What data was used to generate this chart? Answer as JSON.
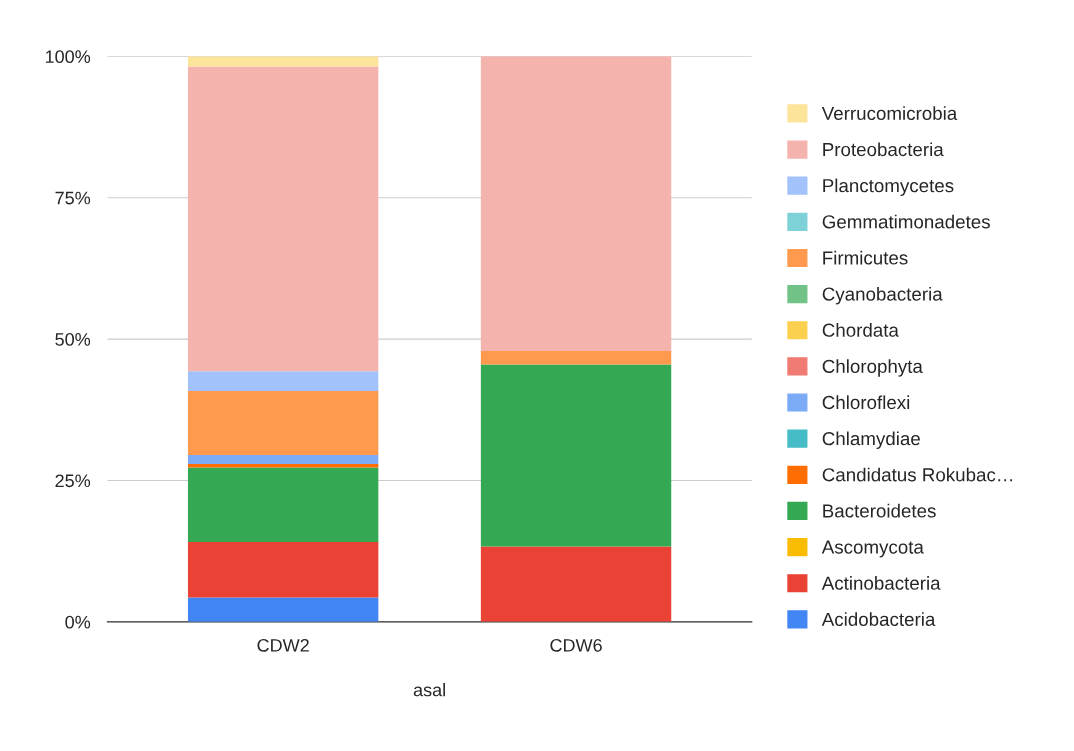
{
  "chart_data": {
    "type": "bar",
    "stacked": true,
    "xlabel": "asal",
    "categories": [
      "CDW2",
      "CDW6"
    ],
    "ylim": [
      0,
      100
    ],
    "yticks": [
      {
        "value": 0,
        "label": "0%"
      },
      {
        "value": 25,
        "label": "25%"
      },
      {
        "value": 50,
        "label": "50%"
      },
      {
        "value": 75,
        "label": "75%"
      },
      {
        "value": 100,
        "label": "100%"
      }
    ],
    "grid": "y",
    "legend": "right",
    "series": [
      {
        "name": "Acidobacteria",
        "color": "#4285f4",
        "values": [
          4.3,
          0
        ]
      },
      {
        "name": "Actinobacteria",
        "color": "#ea4335",
        "values": [
          9.8,
          13.3
        ]
      },
      {
        "name": "Ascomycota",
        "color": "#fbbc04",
        "values": [
          0,
          0
        ]
      },
      {
        "name": "Bacteroidetes",
        "color": "#34a853",
        "values": [
          13.2,
          32.2
        ]
      },
      {
        "name": "Candidatus Rokubac…",
        "color": "#ff6d01",
        "values": [
          0.6,
          0
        ]
      },
      {
        "name": "Chlamydiae",
        "color": "#46bdc6",
        "values": [
          0,
          0
        ]
      },
      {
        "name": "Chloroflexi",
        "color": "#7baaf7",
        "values": [
          1.6,
          0
        ]
      },
      {
        "name": "Chlorophyta",
        "color": "#f07b72",
        "values": [
          0,
          0
        ]
      },
      {
        "name": "Chordata",
        "color": "#fcd04f",
        "values": [
          0,
          0
        ]
      },
      {
        "name": "Cyanobacteria",
        "color": "#71c287",
        "values": [
          0,
          0
        ]
      },
      {
        "name": "Firmicutes",
        "color": "#ff994d",
        "values": [
          11.3,
          2.4
        ]
      },
      {
        "name": "Gemmatimonadetes",
        "color": "#7ed1d7",
        "values": [
          0,
          0
        ]
      },
      {
        "name": "Planctomycetes",
        "color": "#a1c2fa",
        "values": [
          3.5,
          0
        ]
      },
      {
        "name": "Proteobacteria",
        "color": "#f5b3ae",
        "values": [
          53.9,
          52.1
        ]
      },
      {
        "name": "Verrucomicrobia",
        "color": "#fde49b",
        "values": [
          1.8,
          0
        ]
      }
    ]
  }
}
